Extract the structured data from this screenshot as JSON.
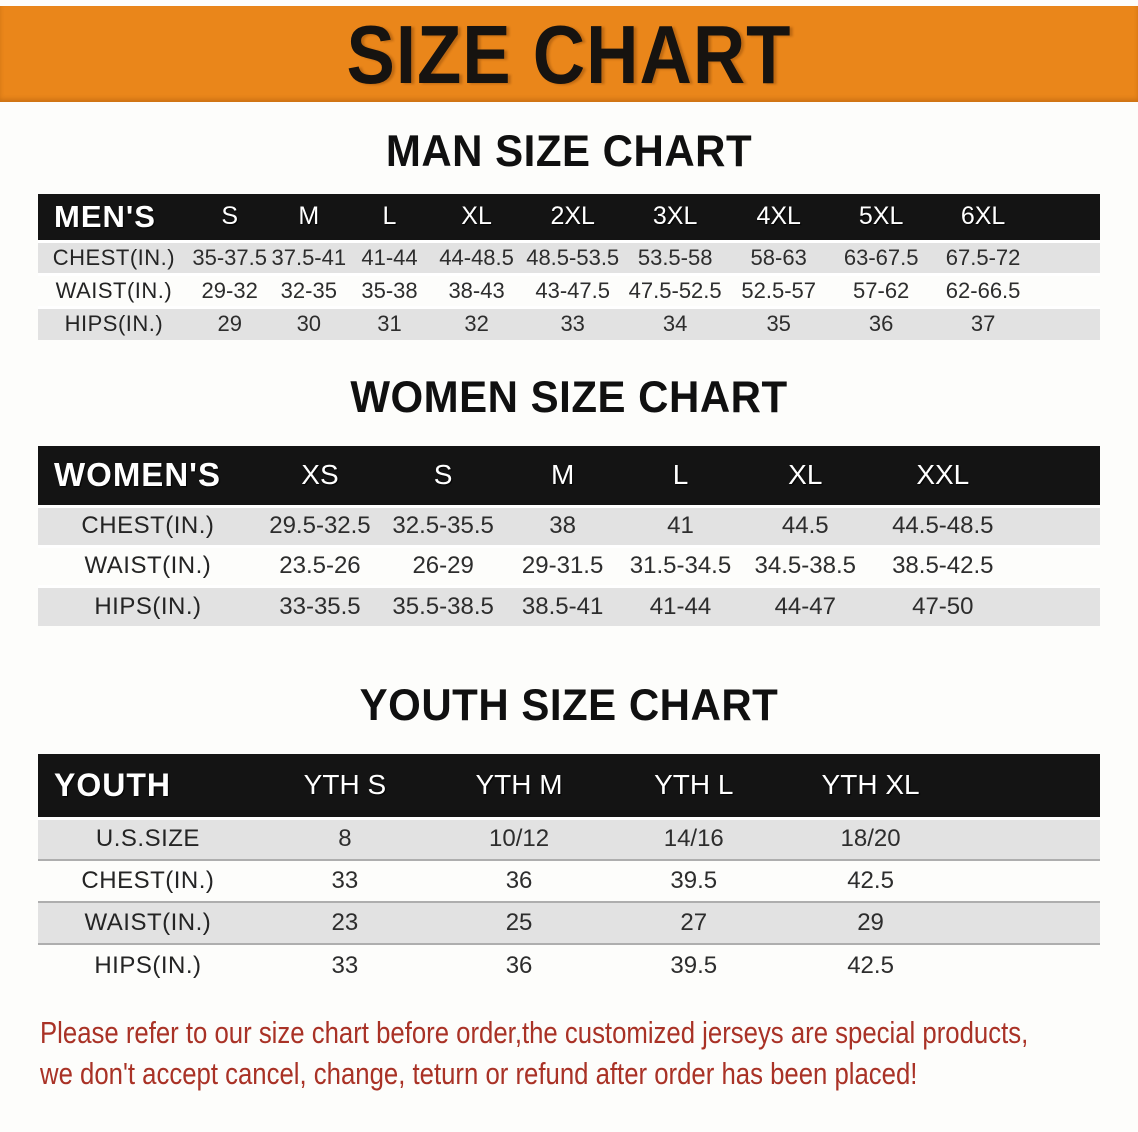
{
  "banner": {
    "title": "SIZE CHART"
  },
  "colors": {
    "banner_bg": "#EA861A",
    "table_header_bg": "#141414",
    "row_stripe": "#E2E2E2",
    "disclaimer_text": "#A93226"
  },
  "sections": [
    {
      "id": "men",
      "title": "MAN SIZE CHART",
      "header_label": "MEN'S",
      "columns": [
        "S",
        "M",
        "L",
        "XL",
        "2XL",
        "3XL",
        "4XL",
        "5XL",
        "6XL"
      ],
      "rows": [
        {
          "label": "CHEST(IN.)",
          "values": [
            "35-37.5",
            "37.5-41",
            "41-44",
            "44-48.5",
            "48.5-53.5",
            "53.5-58",
            "58-63",
            "63-67.5",
            "67.5-72"
          ]
        },
        {
          "label": "WAIST(IN.)",
          "values": [
            "29-32",
            "32-35",
            "35-38",
            "38-43",
            "43-47.5",
            "47.5-52.5",
            "52.5-57",
            "57-62",
            "62-66.5"
          ]
        },
        {
          "label": "HIPS(IN.)",
          "values": [
            "29",
            "30",
            "31",
            "32",
            "33",
            "34",
            "35",
            "36",
            "37"
          ]
        }
      ]
    },
    {
      "id": "women",
      "title": "WOMEN SIZE CHART",
      "header_label": "WOMEN'S",
      "columns": [
        "XS",
        "S",
        "M",
        "L",
        "XL",
        "XXL"
      ],
      "rows": [
        {
          "label": "CHEST(IN.)",
          "values": [
            "29.5-32.5",
            "32.5-35.5",
            "38",
            "41",
            "44.5",
            "44.5-48.5"
          ]
        },
        {
          "label": "WAIST(IN.)",
          "values": [
            "23.5-26",
            "26-29",
            "29-31.5",
            "31.5-34.5",
            "34.5-38.5",
            "38.5-42.5"
          ]
        },
        {
          "label": "HIPS(IN.)",
          "values": [
            "33-35.5",
            "35.5-38.5",
            "38.5-41",
            "41-44",
            "44-47",
            "47-50"
          ]
        }
      ]
    },
    {
      "id": "youth",
      "title": "YOUTH SIZE CHART",
      "header_label": "YOUTH",
      "columns": [
        "YTH S",
        "YTH M",
        "YTH L",
        "YTH XL"
      ],
      "rows": [
        {
          "label": "U.S.SIZE",
          "values": [
            "8",
            "10/12",
            "14/16",
            "18/20"
          ]
        },
        {
          "label": "CHEST(IN.)",
          "values": [
            "33",
            "36",
            "39.5",
            "42.5"
          ]
        },
        {
          "label": "WAIST(IN.)",
          "values": [
            "23",
            "25",
            "27",
            "29"
          ]
        },
        {
          "label": "HIPS(IN.)",
          "values": [
            "33",
            "36",
            "39.5",
            "42.5"
          ]
        }
      ]
    }
  ],
  "disclaimer": {
    "lines": [
      "Please refer to our size chart before order,the customized jerseys are special products,",
      "we don't accept cancel, change, teturn or refund after order has been placed!"
    ]
  }
}
